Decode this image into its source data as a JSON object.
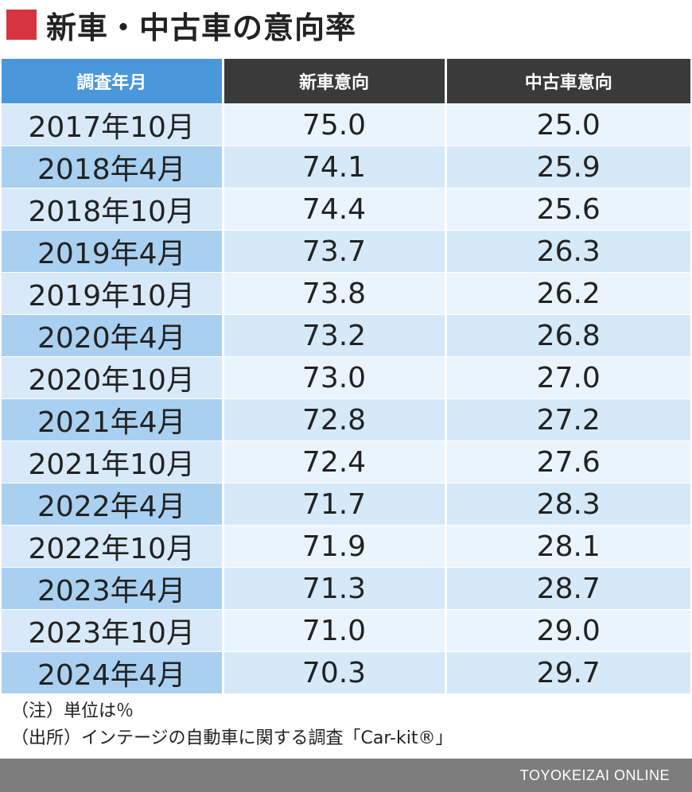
{
  "title": "新車・中古車の意向率",
  "colors": {
    "title_mark": "#d6343e",
    "header_label": "#4a97dc",
    "header_dark": "#3a3a3a",
    "row_label_a": "#d8eaf9",
    "row_label_b": "#a9d0f1",
    "footer": "#7d7d7d"
  },
  "chart_data": {
    "type": "table",
    "title": "新車・中古車の意向率",
    "columns": [
      "調査年月",
      "新車意向",
      "中古車意向"
    ],
    "rows": [
      [
        "2017年10月",
        "75.0",
        "25.0"
      ],
      [
        "2018年4月",
        "74.1",
        "25.9"
      ],
      [
        "2018年10月",
        "74.4",
        "25.6"
      ],
      [
        "2019年4月",
        "73.7",
        "26.3"
      ],
      [
        "2019年10月",
        "73.8",
        "26.2"
      ],
      [
        "2020年4月",
        "73.2",
        "26.8"
      ],
      [
        "2020年10月",
        "73.0",
        "27.0"
      ],
      [
        "2021年4月",
        "72.8",
        "27.2"
      ],
      [
        "2021年10月",
        "72.4",
        "27.6"
      ],
      [
        "2022年4月",
        "71.7",
        "28.3"
      ],
      [
        "2022年10月",
        "71.9",
        "28.1"
      ],
      [
        "2023年4月",
        "71.3",
        "28.7"
      ],
      [
        "2023年10月",
        "71.0",
        "29.0"
      ],
      [
        "2024年4月",
        "70.3",
        "29.7"
      ]
    ]
  },
  "notes": {
    "unit": "（注）単位は％",
    "source": "（出所）インテージの自動車に関する調査「Car-kit®」"
  },
  "footer": {
    "brand": "TOYOKEIZAI ONLINE"
  }
}
